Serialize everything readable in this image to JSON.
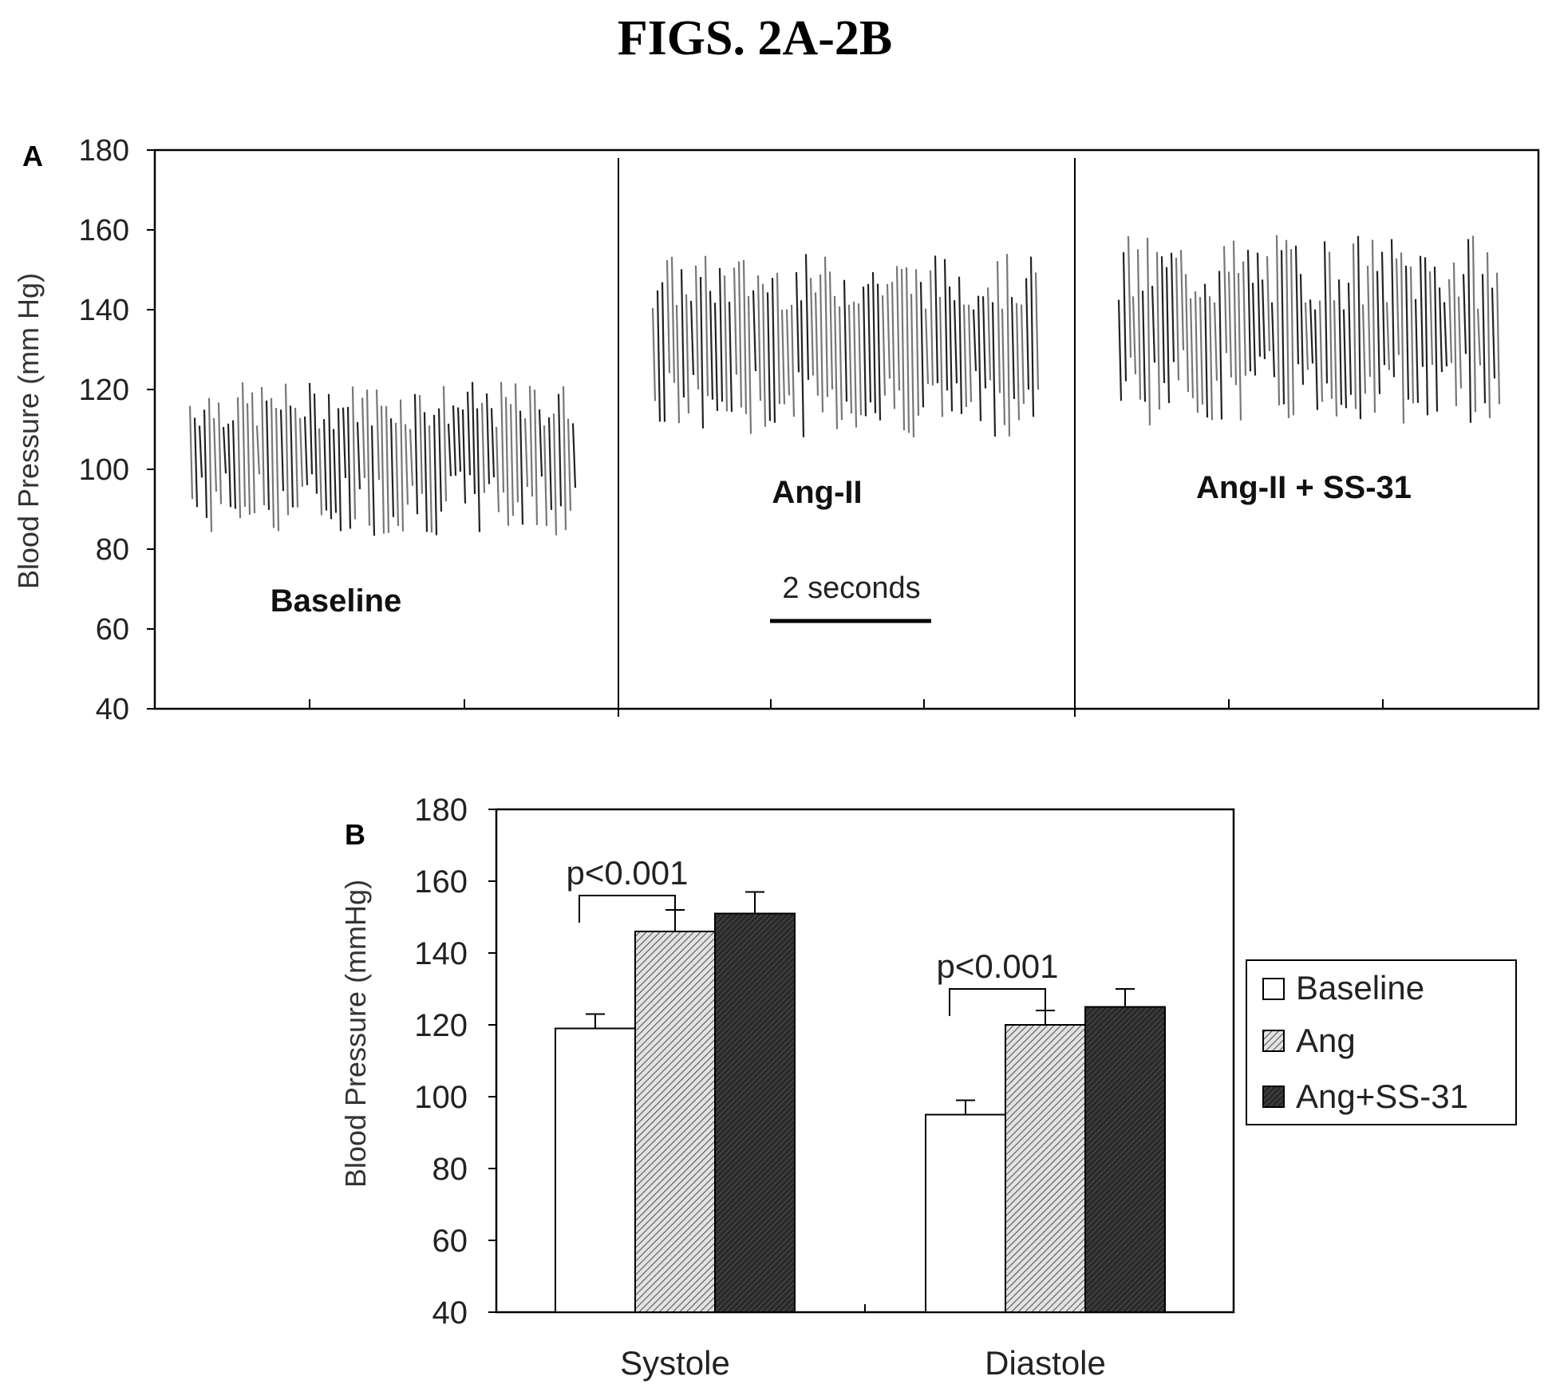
{
  "figure_title": "FIGS. 2A-2B",
  "colors": {
    "baseline": "#ffffff",
    "ang": "#b5b5b5",
    "ang_ss31": "#333333",
    "trace": "#3a3a3a",
    "axis": "#000000"
  },
  "chart_data": [
    {
      "panel": "A",
      "type": "line",
      "ylabel": "Blood Pressure (mm Hg)",
      "ylim": [
        40,
        180
      ],
      "yticks": [
        180,
        160,
        140,
        120,
        100,
        80,
        60,
        40
      ],
      "grid": false,
      "scale_bar_label": "2 seconds",
      "segments": [
        {
          "label": "Baseline",
          "systolic_range": [
            110,
            122
          ],
          "diastolic_range": [
            83,
            100
          ]
        },
        {
          "label": "Ang-II",
          "systolic_range": [
            140,
            154
          ],
          "diastolic_range": [
            108,
            125
          ]
        },
        {
          "label": "Ang-II + SS-31",
          "systolic_range": [
            140,
            159
          ],
          "diastolic_range": [
            111,
            130
          ]
        }
      ]
    },
    {
      "panel": "B",
      "type": "bar",
      "ylabel": "Blood Pressure (mmHg)",
      "ylim": [
        40,
        180
      ],
      "yticks": [
        180,
        160,
        140,
        120,
        100,
        80,
        60,
        40
      ],
      "categories": [
        "Systole",
        "Diastole"
      ],
      "series": [
        {
          "name": "Baseline",
          "values": [
            119,
            95
          ],
          "errors": [
            4,
            4
          ]
        },
        {
          "name": "Ang",
          "values": [
            146,
            120
          ],
          "errors": [
            6,
            4
          ]
        },
        {
          "name": "Ang+SS-31",
          "values": [
            151,
            125
          ],
          "errors": [
            6,
            5
          ]
        }
      ],
      "annotations": [
        {
          "text": "p<0.001",
          "category": "Systole"
        },
        {
          "text": "p<0.001",
          "category": "Diastole"
        }
      ],
      "legend_position": "right"
    }
  ]
}
